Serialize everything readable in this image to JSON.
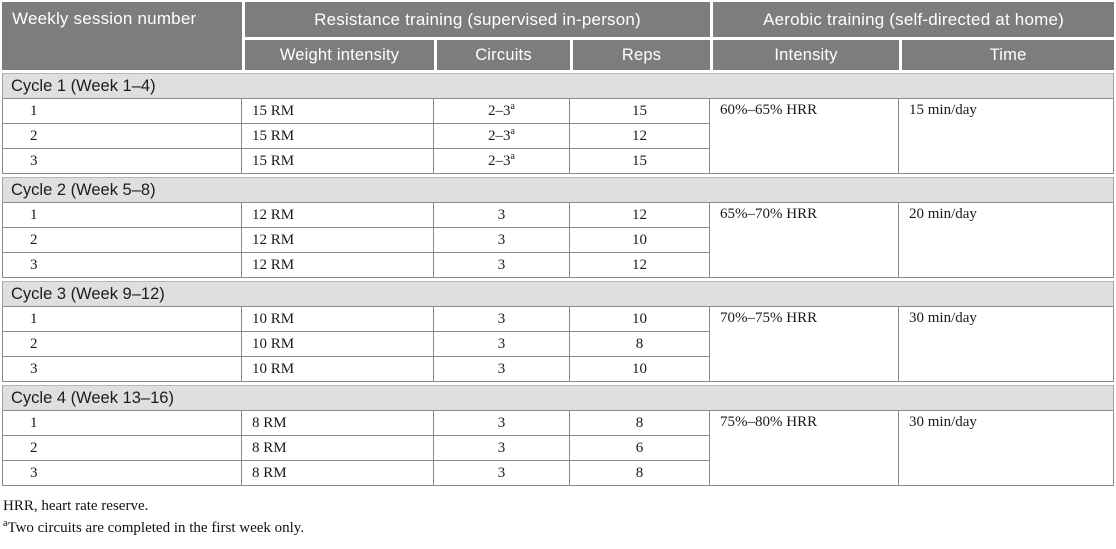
{
  "colors": {
    "header_bg": "#7d7d7d",
    "header_text": "#ffffff",
    "band_bg": "#dfdfdf",
    "cell_border": "#8a8a8a"
  },
  "table": {
    "header": {
      "session": "Weekly session number",
      "resistance_group": "Resistance training (supervised in-person)",
      "aerobic_group": "Aerobic training (self-directed at home)",
      "weight_intensity": "Weight intensity",
      "circuits": "Circuits",
      "reps": "Reps",
      "intensity": "Intensity",
      "time": "Time"
    },
    "cycles": [
      {
        "label": "Cycle 1 (Week 1–4)",
        "intensity": "60%–65% HRR",
        "time": "15 min/day",
        "rows": [
          {
            "session": "1",
            "weight": "15 RM",
            "circuits": "2–3",
            "circuits_note": "a",
            "reps": "15"
          },
          {
            "session": "2",
            "weight": "15 RM",
            "circuits": "2–3",
            "circuits_note": "a",
            "reps": "12"
          },
          {
            "session": "3",
            "weight": "15 RM",
            "circuits": "2–3",
            "circuits_note": "a",
            "reps": "15"
          }
        ]
      },
      {
        "label": "Cycle 2 (Week 5–8)",
        "intensity": "65%–70% HRR",
        "time": "20 min/day",
        "rows": [
          {
            "session": "1",
            "weight": "12 RM",
            "circuits": "3",
            "circuits_note": "",
            "reps": "12"
          },
          {
            "session": "2",
            "weight": "12 RM",
            "circuits": "3",
            "circuits_note": "",
            "reps": "10"
          },
          {
            "session": "3",
            "weight": "12 RM",
            "circuits": "3",
            "circuits_note": "",
            "reps": "12"
          }
        ]
      },
      {
        "label": "Cycle 3 (Week 9–12)",
        "intensity": "70%–75% HRR",
        "time": "30 min/day",
        "rows": [
          {
            "session": "1",
            "weight": "10 RM",
            "circuits": "3",
            "circuits_note": "",
            "reps": "10"
          },
          {
            "session": "2",
            "weight": "10 RM",
            "circuits": "3",
            "circuits_note": "",
            "reps": "8"
          },
          {
            "session": "3",
            "weight": "10 RM",
            "circuits": "3",
            "circuits_note": "",
            "reps": "10"
          }
        ]
      },
      {
        "label": "Cycle 4 (Week 13–16)",
        "intensity": "75%–80% HRR",
        "time": "30 min/day",
        "rows": [
          {
            "session": "1",
            "weight": "8 RM",
            "circuits": "3",
            "circuits_note": "",
            "reps": "8"
          },
          {
            "session": "2",
            "weight": "8 RM",
            "circuits": "3",
            "circuits_note": "",
            "reps": "6"
          },
          {
            "session": "3",
            "weight": "8 RM",
            "circuits": "3",
            "circuits_note": "",
            "reps": "8"
          }
        ]
      }
    ],
    "footnotes": [
      {
        "sup": "",
        "text": "HRR, heart rate reserve."
      },
      {
        "sup": "a",
        "text": "Two circuits are completed in the first week only."
      }
    ]
  }
}
